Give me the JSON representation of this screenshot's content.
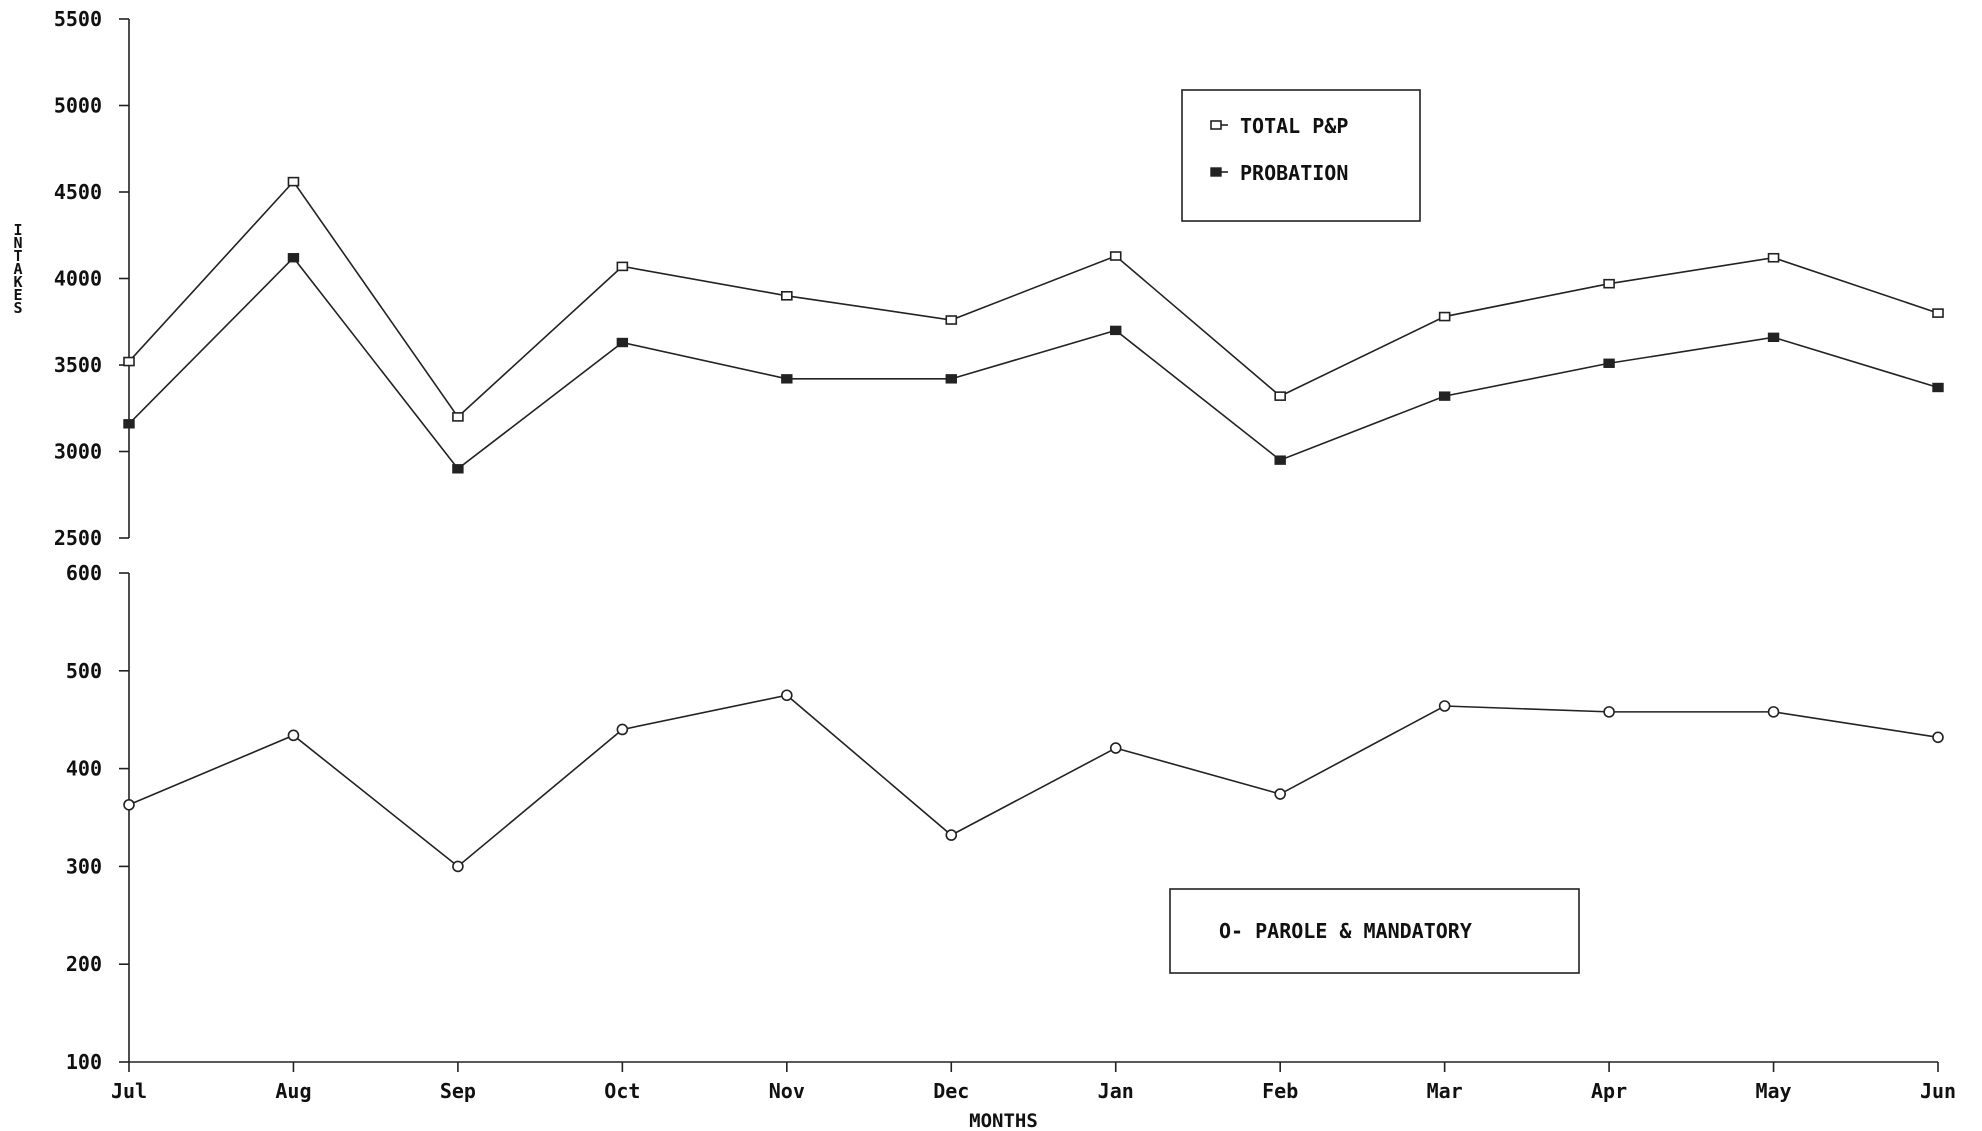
{
  "chart_data": [
    {
      "type": "line",
      "xlabel": "",
      "ylabel": "INTAKES",
      "ylim": [
        2500,
        5500
      ],
      "yticks": [
        "5500",
        "5000",
        "4500",
        "4000",
        "3500",
        "3000",
        "2500"
      ],
      "categories": [
        "Jul",
        "Aug",
        "Sep",
        "Oct",
        "Nov",
        "Dec",
        "Jan",
        "Feb",
        "Mar",
        "Apr",
        "May",
        "Jun"
      ],
      "legend_position": "top-right",
      "grid": false,
      "series": [
        {
          "name": "TOTAL P&P",
          "marker": "open-square",
          "values": [
            3520,
            4560,
            3200,
            4070,
            3900,
            3760,
            4130,
            3320,
            3780,
            3970,
            4120,
            3800
          ]
        },
        {
          "name": "PROBATION",
          "marker": "filled-square",
          "values": [
            3160,
            4120,
            2900,
            3630,
            3420,
            3420,
            3700,
            2950,
            3320,
            3510,
            3660,
            3370
          ]
        }
      ]
    },
    {
      "type": "line",
      "xlabel": "MONTHS",
      "ylabel": "",
      "ylim": [
        100,
        600
      ],
      "yticks": [
        "600",
        "500",
        "400",
        "300",
        "200",
        "100"
      ],
      "categories": [
        "Jul",
        "Aug",
        "Sep",
        "Oct",
        "Nov",
        "Dec",
        "Jan",
        "Feb",
        "Mar",
        "Apr",
        "May",
        "Jun"
      ],
      "legend_position": "bottom-right",
      "grid": false,
      "series": [
        {
          "name": "PAROLE & MANDATORY",
          "legend_label": "O- PAROLE & MANDATORY",
          "marker": "open-circle",
          "values": [
            363,
            434,
            300,
            440,
            475,
            332,
            421,
            374,
            464,
            458,
            458,
            432
          ]
        }
      ]
    }
  ]
}
